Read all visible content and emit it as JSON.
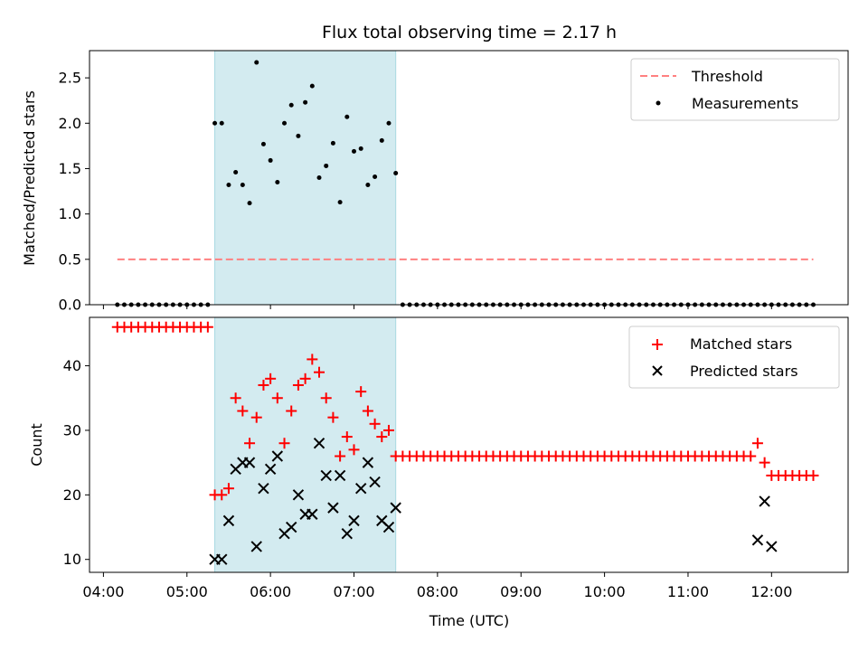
{
  "chart_data": [
    {
      "type": "scatter",
      "title": "Flux total observing time = 2.17 h",
      "xlabel": "",
      "ylabel": "Matched/Predicted stars",
      "ylim": [
        0,
        2.8
      ],
      "yticks": [
        "0.0",
        "0.5",
        "1.0",
        "1.5",
        "2.0",
        "2.5"
      ],
      "ytick_values": [
        0,
        0.5,
        1.0,
        1.5,
        2.0,
        2.5
      ],
      "shaded_region": {
        "x_start": "05:20",
        "x_end": "07:30",
        "color": "#d3ebf0"
      },
      "threshold": {
        "name": "Threshold",
        "value": 0.5,
        "x_start": "04:10",
        "x_end": "12:30",
        "color": "#ff8080"
      },
      "legend": {
        "position": "top-right",
        "entries": [
          "Threshold",
          "Measurements"
        ]
      },
      "series": [
        {
          "name": "Measurements",
          "x": [
            "04:10",
            "04:15",
            "04:20",
            "04:25",
            "04:30",
            "04:35",
            "04:40",
            "04:45",
            "04:50",
            "04:55",
            "05:00",
            "05:05",
            "05:10",
            "05:15",
            "05:20",
            "05:25",
            "05:30",
            "05:35",
            "05:40",
            "05:45",
            "05:50",
            "05:55",
            "06:00",
            "06:05",
            "06:10",
            "06:15",
            "06:20",
            "06:25",
            "06:30",
            "06:35",
            "06:40",
            "06:45",
            "06:50",
            "06:55",
            "07:00",
            "07:05",
            "07:10",
            "07:15",
            "07:20",
            "07:25",
            "07:30",
            "07:35",
            "07:40",
            "07:45",
            "07:50",
            "07:55",
            "08:00",
            "08:05",
            "08:10",
            "08:15",
            "08:20",
            "08:25",
            "08:30",
            "08:35",
            "08:40",
            "08:45",
            "08:50",
            "08:55",
            "09:00",
            "09:05",
            "09:10",
            "09:15",
            "09:20",
            "09:25",
            "09:30",
            "09:35",
            "09:40",
            "09:45",
            "09:50",
            "09:55",
            "10:00",
            "10:05",
            "10:10",
            "10:15",
            "10:20",
            "10:25",
            "10:30",
            "10:35",
            "10:40",
            "10:45",
            "10:50",
            "10:55",
            "11:00",
            "11:05",
            "11:10",
            "11:15",
            "11:20",
            "11:25",
            "11:30",
            "11:35",
            "11:40",
            "11:45",
            "11:50",
            "11:55",
            "12:00",
            "12:05",
            "12:10",
            "12:15",
            "12:20",
            "12:25",
            "12:30"
          ],
          "y": [
            0,
            0,
            0,
            0,
            0,
            0,
            0,
            0,
            0,
            0,
            0,
            0,
            0,
            0,
            2.0,
            2.0,
            1.32,
            1.46,
            1.32,
            1.12,
            2.67,
            1.77,
            1.59,
            1.35,
            2.0,
            2.2,
            1.86,
            2.23,
            2.41,
            1.4,
            1.53,
            1.78,
            1.13,
            2.07,
            1.69,
            1.72,
            1.32,
            1.41,
            1.81,
            2.0,
            1.45,
            0,
            0,
            0,
            0,
            0,
            0,
            0,
            0,
            0,
            0,
            0,
            0,
            0,
            0,
            0,
            0,
            0,
            0,
            0,
            0,
            0,
            0,
            0,
            0,
            0,
            0,
            0,
            0,
            0,
            0,
            0,
            0,
            0,
            0,
            0,
            0,
            0,
            0,
            0,
            0,
            0,
            0,
            0,
            0,
            0,
            0,
            0,
            0,
            0,
            0,
            0,
            0,
            0,
            0,
            0,
            0,
            0,
            0,
            0,
            0
          ],
          "color": "#000000"
        }
      ]
    },
    {
      "type": "scatter",
      "xlabel": "Time (UTC)",
      "ylabel": "Count",
      "ylim": [
        8,
        47.5
      ],
      "yticks": [
        "10",
        "20",
        "30",
        "40"
      ],
      "ytick_values": [
        10,
        20,
        30,
        40
      ],
      "xticks": [
        "04:00",
        "05:00",
        "06:00",
        "07:00",
        "08:00",
        "09:00",
        "10:00",
        "11:00",
        "12:00"
      ],
      "xlim": [
        "03:50",
        "12:55"
      ],
      "shaded_region": {
        "x_start": "05:20",
        "x_end": "07:30",
        "color": "#d3ebf0"
      },
      "legend": {
        "position": "top-right",
        "entries": [
          "Matched stars",
          "Predicted stars"
        ]
      },
      "series": [
        {
          "name": "Matched stars",
          "marker": "plus",
          "color": "#ff0000",
          "x": [
            "04:10",
            "04:15",
            "04:20",
            "04:25",
            "04:30",
            "04:35",
            "04:40",
            "04:45",
            "04:50",
            "04:55",
            "05:00",
            "05:05",
            "05:10",
            "05:15",
            "05:20",
            "05:25",
            "05:30",
            "05:35",
            "05:40",
            "05:45",
            "05:50",
            "05:55",
            "06:00",
            "06:05",
            "06:10",
            "06:15",
            "06:20",
            "06:25",
            "06:30",
            "06:35",
            "06:40",
            "06:45",
            "06:50",
            "06:55",
            "07:00",
            "07:05",
            "07:10",
            "07:15",
            "07:20",
            "07:25",
            "07:30",
            "07:35",
            "07:40",
            "07:45",
            "07:50",
            "07:55",
            "08:00",
            "08:05",
            "08:10",
            "08:15",
            "08:20",
            "08:25",
            "08:30",
            "08:35",
            "08:40",
            "08:45",
            "08:50",
            "08:55",
            "09:00",
            "09:05",
            "09:10",
            "09:15",
            "09:20",
            "09:25",
            "09:30",
            "09:35",
            "09:40",
            "09:45",
            "09:50",
            "09:55",
            "10:00",
            "10:05",
            "10:10",
            "10:15",
            "10:20",
            "10:25",
            "10:30",
            "10:35",
            "10:40",
            "10:45",
            "10:50",
            "10:55",
            "11:00",
            "11:05",
            "11:10",
            "11:15",
            "11:20",
            "11:25",
            "11:30",
            "11:35",
            "11:40",
            "11:45",
            "11:50",
            "11:55",
            "12:00",
            "12:05",
            "12:10",
            "12:15",
            "12:20",
            "12:25",
            "12:30"
          ],
          "y": [
            46,
            46,
            46,
            46,
            46,
            46,
            46,
            46,
            46,
            46,
            46,
            46,
            46,
            46,
            20,
            20,
            21,
            35,
            33,
            28,
            32,
            37,
            38,
            35,
            28,
            33,
            37,
            38,
            41,
            39,
            35,
            32,
            26,
            29,
            27,
            36,
            33,
            31,
            29,
            30,
            26,
            26,
            26,
            26,
            26,
            26,
            26,
            26,
            26,
            26,
            26,
            26,
            26,
            26,
            26,
            26,
            26,
            26,
            26,
            26,
            26,
            26,
            26,
            26,
            26,
            26,
            26,
            26,
            26,
            26,
            26,
            26,
            26,
            26,
            26,
            26,
            26,
            26,
            26,
            26,
            26,
            26,
            26,
            26,
            26,
            26,
            26,
            26,
            26,
            26,
            26,
            26,
            28,
            25,
            23,
            23,
            23,
            23,
            23,
            23,
            23
          ]
        },
        {
          "name": "Predicted stars",
          "marker": "x",
          "color": "#000000",
          "x": [
            "05:20",
            "05:25",
            "05:30",
            "05:35",
            "05:40",
            "05:45",
            "05:50",
            "05:55",
            "06:00",
            "06:05",
            "06:10",
            "06:15",
            "06:20",
            "06:25",
            "06:30",
            "06:35",
            "06:40",
            "06:45",
            "06:50",
            "06:55",
            "07:00",
            "07:05",
            "07:10",
            "07:15",
            "07:20",
            "07:25",
            "07:30",
            "11:50",
            "11:55",
            "12:00"
          ],
          "y": [
            10,
            10,
            16,
            24,
            25,
            25,
            12,
            21,
            24,
            26,
            14,
            15,
            20,
            17,
            17,
            28,
            23,
            18,
            23,
            14,
            16,
            21,
            25,
            22,
            16,
            15,
            18,
            13,
            19,
            12
          ]
        }
      ]
    }
  ]
}
